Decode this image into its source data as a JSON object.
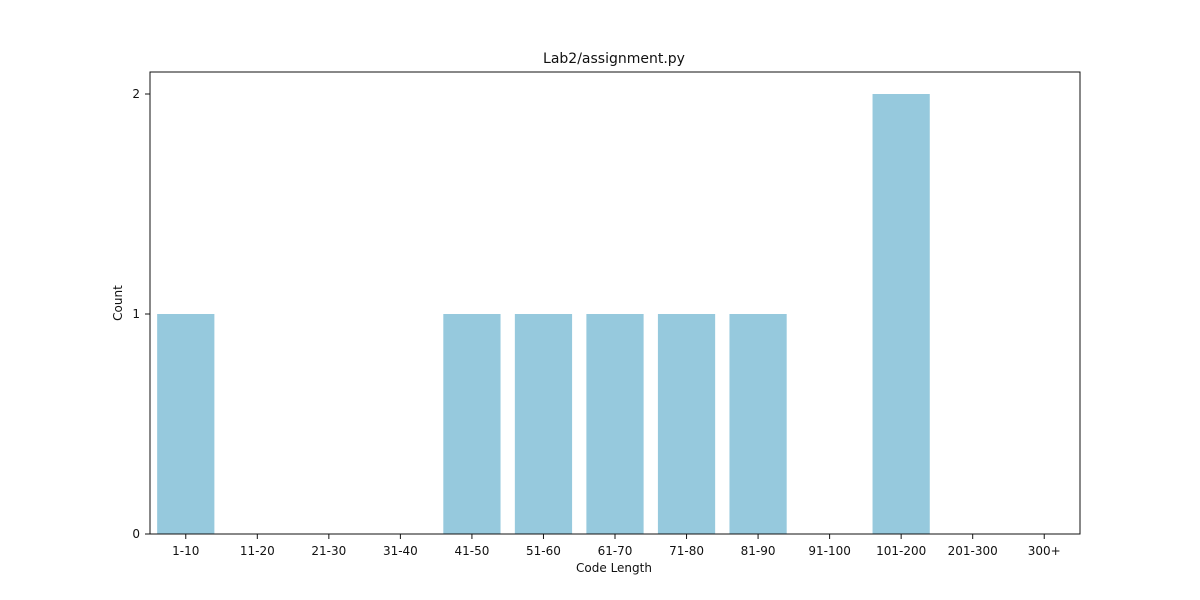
{
  "chart_data": {
    "type": "bar",
    "title": "Lab2/assignment.py",
    "xlabel": "Code Length",
    "ylabel": "Count",
    "categories": [
      "1-10",
      "11-20",
      "21-30",
      "31-40",
      "41-50",
      "51-60",
      "61-70",
      "71-80",
      "81-90",
      "91-100",
      "101-200",
      "201-300",
      "300+"
    ],
    "values": [
      1,
      0,
      0,
      0,
      1,
      1,
      1,
      1,
      1,
      0,
      2,
      0,
      0
    ],
    "ylim": [
      0,
      2.1
    ],
    "yticks": [
      0,
      1,
      2
    ],
    "grid": false,
    "bar_color": "#96c9dd"
  }
}
